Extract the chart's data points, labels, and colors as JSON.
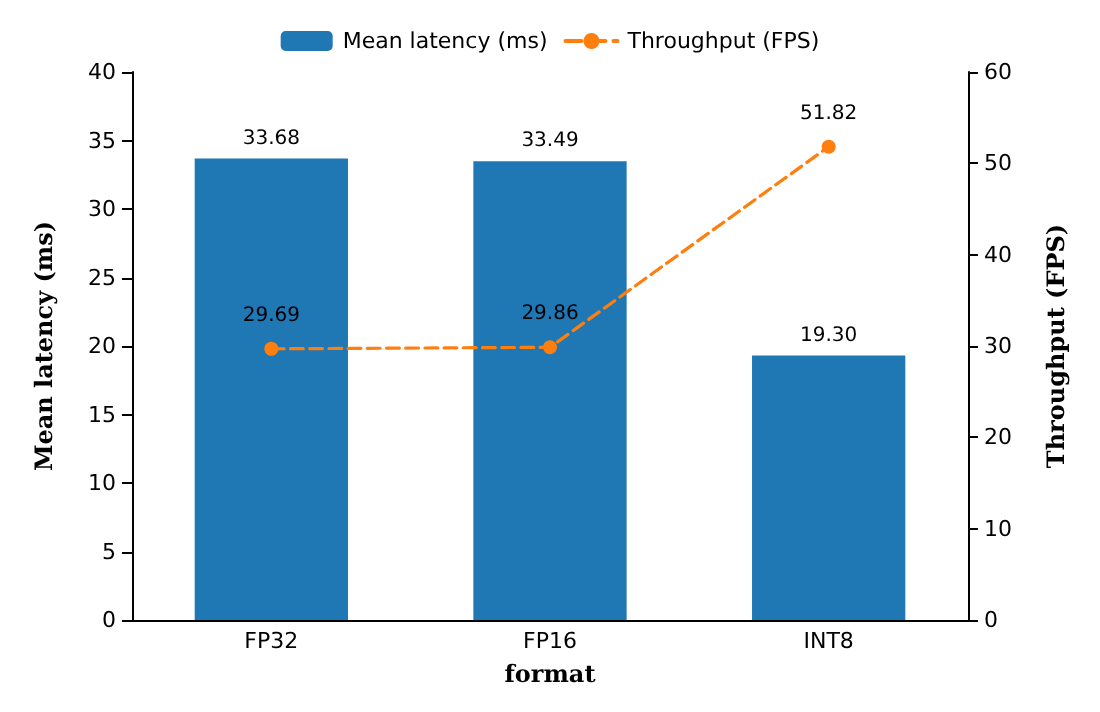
{
  "chart_data": {
    "type": "bar",
    "xlabel": "format",
    "ylabel": "Mean latency (ms)",
    "y2label": "Throughput (FPS)",
    "categories": [
      "FP32",
      "FP16",
      "INT8"
    ],
    "series": [
      {
        "name": "Mean latency (ms)",
        "color": "#1f77b4",
        "values": [
          33.68,
          33.49,
          19.3
        ],
        "value_labels": [
          "33.68",
          "33.49",
          "19.30"
        ]
      },
      {
        "name": "Throughput (FPS)",
        "type": "line",
        "axis": "y2",
        "color": "#ff7f0e",
        "values": [
          29.69,
          29.86,
          51.82
        ],
        "value_labels": [
          "29.69",
          "29.86",
          "51.82"
        ],
        "marker": "circle",
        "line_style": "dashed"
      }
    ],
    "ylim": [
      0,
      40
    ],
    "yticks": [
      0,
      5,
      10,
      15,
      20,
      25,
      30,
      35,
      40
    ],
    "y2lim": [
      0,
      60
    ],
    "y2ticks": [
      0,
      10,
      20,
      30,
      40,
      50,
      60
    ],
    "grid": false,
    "legend": "top"
  }
}
